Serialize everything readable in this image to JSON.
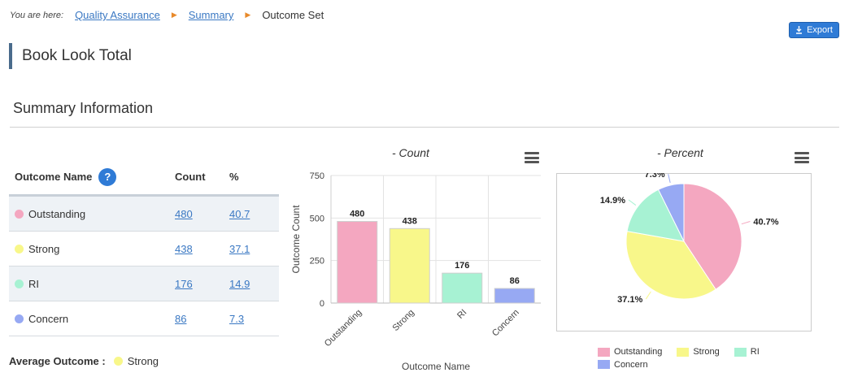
{
  "breadcrumb": {
    "prefix": "You are here:",
    "items": [
      "Quality Assurance",
      "Summary",
      "Outcome Set"
    ]
  },
  "export_label": "Export",
  "page_title": "Book Look Total",
  "section_title": "Summary Information",
  "table": {
    "headers": {
      "name": "Outcome Name",
      "count": "Count",
      "pct": "%"
    },
    "rows": [
      {
        "name": "Outstanding",
        "count": "480",
        "pct": "40.7",
        "color": "#f4a7c0"
      },
      {
        "name": "Strong",
        "count": "438",
        "pct": "37.1",
        "color": "#f8f78a"
      },
      {
        "name": "RI",
        "count": "176",
        "pct": "14.9",
        "color": "#a7f2d3"
      },
      {
        "name": "Concern",
        "count": "86",
        "pct": "7.3",
        "color": "#97a9f3"
      }
    ]
  },
  "average": {
    "label": "Average Outcome :",
    "value": "Strong",
    "color": "#f8f78a"
  },
  "chart_data": [
    {
      "type": "bar",
      "title": "- Count",
      "xlabel": "Outcome Name",
      "ylabel": "Outcome Count",
      "categories": [
        "Outstanding",
        "Strong",
        "RI",
        "Concern"
      ],
      "values": [
        480,
        438,
        176,
        86
      ],
      "colors": [
        "#f4a7c0",
        "#f8f78a",
        "#a7f2d3",
        "#97a9f3"
      ],
      "ylim": [
        0,
        750
      ],
      "yticks": [
        0,
        250,
        500,
        750
      ],
      "grid": true
    },
    {
      "type": "pie",
      "title": "- Percent",
      "categories": [
        "Outstanding",
        "Strong",
        "RI",
        "Concern"
      ],
      "values": [
        40.7,
        37.1,
        14.9,
        7.3
      ],
      "labels": [
        "40.7%",
        "37.1%",
        "14.9%",
        "7.3%"
      ],
      "colors": [
        "#f4a7c0",
        "#f8f78a",
        "#a7f2d3",
        "#97a9f3"
      ],
      "legend": "bottom"
    }
  ]
}
